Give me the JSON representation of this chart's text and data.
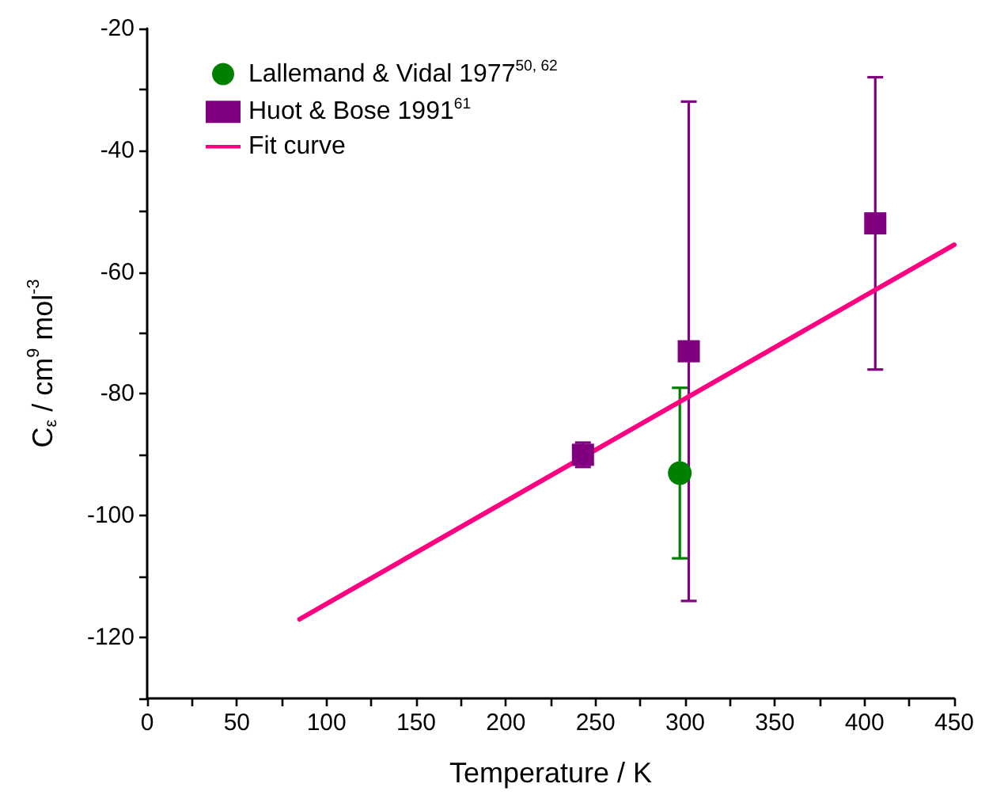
{
  "chart_data": {
    "type": "scatter",
    "xlabel": "Temperature / K",
    "ylabel": "C$_{ε}$ / cm$^{9}$ mol$^{-3}$",
    "xlim": [
      0,
      450
    ],
    "ylim": [
      -130,
      -20
    ],
    "xticks": [
      0,
      {
        "value": 25,
        "label": null
      },
      50,
      {
        "value": 75,
        "label": null
      },
      100,
      {
        "value": 125,
        "label": null
      },
      150,
      {
        "value": 175,
        "label": null
      },
      200,
      {
        "value": 225,
        "label": null
      },
      250,
      {
        "value": 275,
        "label": null
      },
      300,
      {
        "value": 325,
        "label": null
      },
      350,
      {
        "value": 375,
        "label": null
      },
      400,
      {
        "value": 425,
        "label": null
      },
      450
    ],
    "yticks": [
      {
        "value": -130,
        "label": null
      },
      -120,
      {
        "value": -110,
        "label": null
      },
      -100,
      {
        "value": -90,
        "label": null
      },
      -80,
      {
        "value": -70,
        "label": null
      },
      -60,
      {
        "value": -50,
        "label": null
      },
      -40,
      {
        "value": -30,
        "label": null
      },
      -20
    ],
    "grid": false,
    "legend": "top left",
    "series": [
      {
        "name": "Lallemand & Vidal 1977$^{50, 62}$",
        "marker": "circle",
        "color": "#008000",
        "x": [
          297
        ],
        "values": [
          -93
        ],
        "errors": [
          14
        ]
      },
      {
        "name": "Huot & Bose 1991$^{61}$",
        "marker": "square",
        "color": "#800080",
        "x": [
          243,
          302,
          406
        ],
        "values": [
          -90,
          -73,
          -52
        ],
        "errors": [
          2,
          41,
          24
        ]
      },
      {
        "name": "Fit curve",
        "type": "line",
        "marker": "none",
        "line_style": "solid",
        "color": "#ff0080",
        "x": [
          85,
          450
        ],
        "values": [
          -117,
          -55.5
        ]
      }
    ]
  }
}
